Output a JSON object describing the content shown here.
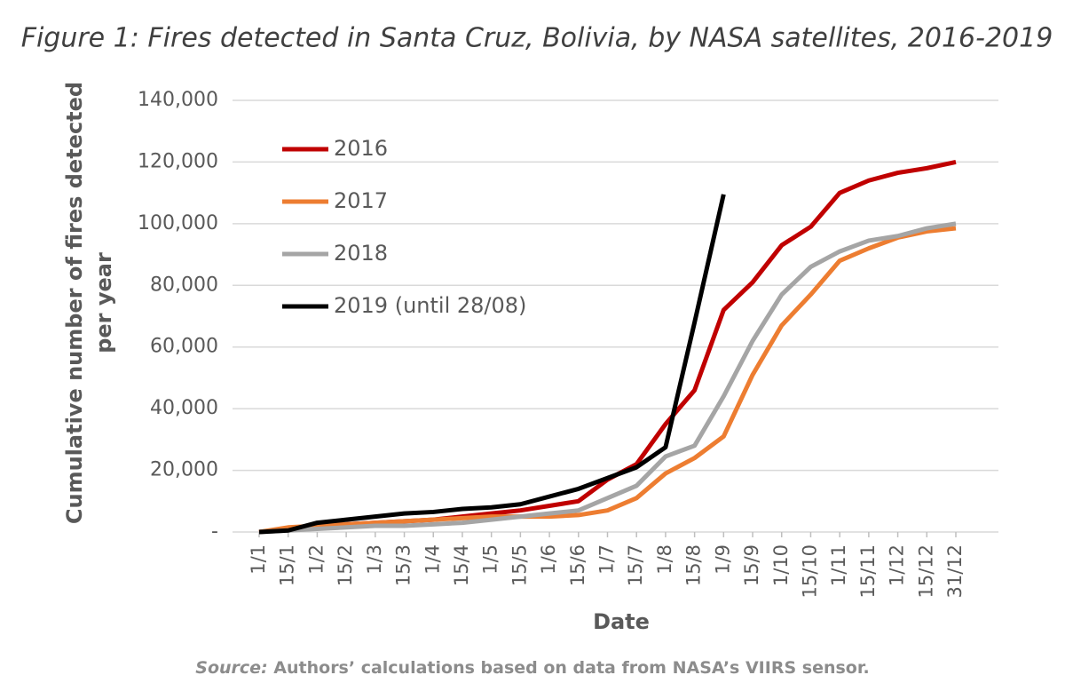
{
  "chart_data": {
    "type": "line",
    "title": "Figure 1: Fires detected in Santa Cruz, Bolivia, by NASA satellites, 2016-2019",
    "y_label": [
      "Cumulative number of fires detected",
      "per year"
    ],
    "x_label": "Date",
    "source_label": "Source:",
    "source": "Authors’ calculations based on data from NASA’s VIIRS sensor.",
    "categories": [
      "1/1",
      "15/1",
      "1/2",
      "15/2",
      "1/3",
      "15/3",
      "1/4",
      "15/4",
      "1/5",
      "15/5",
      "1/6",
      "15/6",
      "1/7",
      "15/7",
      "1/8",
      "15/8",
      "1/9",
      "15/9",
      "1/10",
      "15/10",
      "1/11",
      "15/11",
      "1/12",
      "15/12",
      "31/12"
    ],
    "series": [
      {
        "name": "2016",
        "color": "#c00000",
        "values": [
          0,
          1000,
          2000,
          2500,
          3000,
          3500,
          4000,
          5000,
          6000,
          7000,
          8500,
          10000,
          17000,
          22000,
          35000,
          46000,
          72000,
          81000,
          93000,
          99000,
          110000,
          114000,
          116500,
          118000,
          120000
        ]
      },
      {
        "name": "2017",
        "color": "#ed7d31",
        "values": [
          0,
          1500,
          2000,
          2500,
          3000,
          3500,
          4000,
          4500,
          5000,
          5000,
          5000,
          5500,
          7000,
          11000,
          19000,
          24000,
          31000,
          51000,
          67000,
          77000,
          88000,
          92000,
          95500,
          97500,
          98500
        ]
      },
      {
        "name": "2018",
        "color": "#a5a5a5",
        "values": [
          0,
          500,
          1000,
          1500,
          2000,
          2000,
          2500,
          3000,
          4000,
          5000,
          6000,
          7000,
          11000,
          15000,
          24500,
          28000,
          44000,
          62000,
          77000,
          86000,
          91000,
          94500,
          96000,
          98500,
          100000
        ]
      },
      {
        "name": "2019 (until 28/08)",
        "color": "#000000",
        "values": [
          0,
          500,
          3000,
          4000,
          5000,
          6000,
          6500,
          7500,
          8000,
          9000,
          11500,
          14000,
          17500,
          21000,
          27500,
          68000,
          109500,
          null,
          null,
          null,
          null,
          null,
          null,
          null,
          null
        ]
      }
    ],
    "ylim": [
      0,
      140000
    ],
    "yticks": [
      {
        "value": 0,
        "label": "-"
      },
      {
        "value": 20000,
        "label": "20,000"
      },
      {
        "value": 40000,
        "label": "40,000"
      },
      {
        "value": 60000,
        "label": "60,000"
      },
      {
        "value": 80000,
        "label": "80,000"
      },
      {
        "value": 100000,
        "label": "100,000"
      },
      {
        "value": 120000,
        "label": "120,000"
      },
      {
        "value": 140000,
        "label": "140,000"
      }
    ],
    "grid": true,
    "legend": "upper left"
  }
}
